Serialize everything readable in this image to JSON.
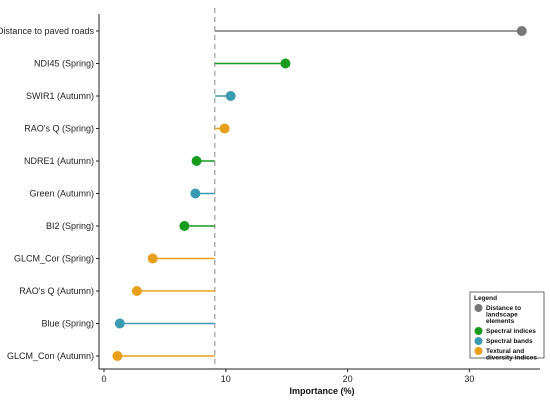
{
  "chart_data": {
    "type": "lollipop",
    "orientation": "horizontal",
    "xlabel": "Importance (%)",
    "xlim": [
      0,
      35
    ],
    "xticks": [
      0,
      10,
      20,
      30
    ],
    "reference_line": 9.1,
    "grid": false,
    "legend_placement": "bottom-right",
    "legend_title": "Legend",
    "groups": [
      {
        "key": "landscape",
        "label": "Distance to landscape elements",
        "lines": [
          "Distance to",
          "landscape",
          "elements"
        ],
        "color": "#777777"
      },
      {
        "key": "spectral_indices",
        "label": "Spectral indices",
        "lines": [
          "Spectral indices"
        ],
        "color": "#179c1f"
      },
      {
        "key": "spectral_bands",
        "label": "Spectral bands",
        "lines": [
          "Spectral bands"
        ],
        "color": "#3b9ab3"
      },
      {
        "key": "textural",
        "label": "Textural and diversity indices",
        "lines": [
          "Textural and",
          "diversity indices"
        ],
        "color": "#e8a01c"
      }
    ],
    "points": [
      {
        "label": "Distance to paved roads",
        "value": 34.3,
        "group": "landscape"
      },
      {
        "label": "NDI45 (Spring)",
        "value": 14.9,
        "group": "spectral_indices"
      },
      {
        "label": "SWIR1 (Autumn)",
        "value": 10.4,
        "group": "spectral_bands"
      },
      {
        "label": "RAO's Q (Spring)",
        "value": 9.9,
        "group": "textural"
      },
      {
        "label": "NDRE1 (Autumn)",
        "value": 7.6,
        "group": "spectral_indices"
      },
      {
        "label": "Green (Autumn)",
        "value": 7.5,
        "group": "spectral_bands"
      },
      {
        "label": "BI2 (Spring)",
        "value": 6.6,
        "group": "spectral_indices"
      },
      {
        "label": "GLCM_Cor (Spring)",
        "value": 4.0,
        "group": "textural"
      },
      {
        "label": "RAO's Q (Autumn)",
        "value": 2.7,
        "group": "textural"
      },
      {
        "label": "Blue (Spring)",
        "value": 1.3,
        "group": "spectral_bands"
      },
      {
        "label": "GLCM_Con (Autumn)",
        "value": 1.1,
        "group": "textural"
      }
    ]
  }
}
